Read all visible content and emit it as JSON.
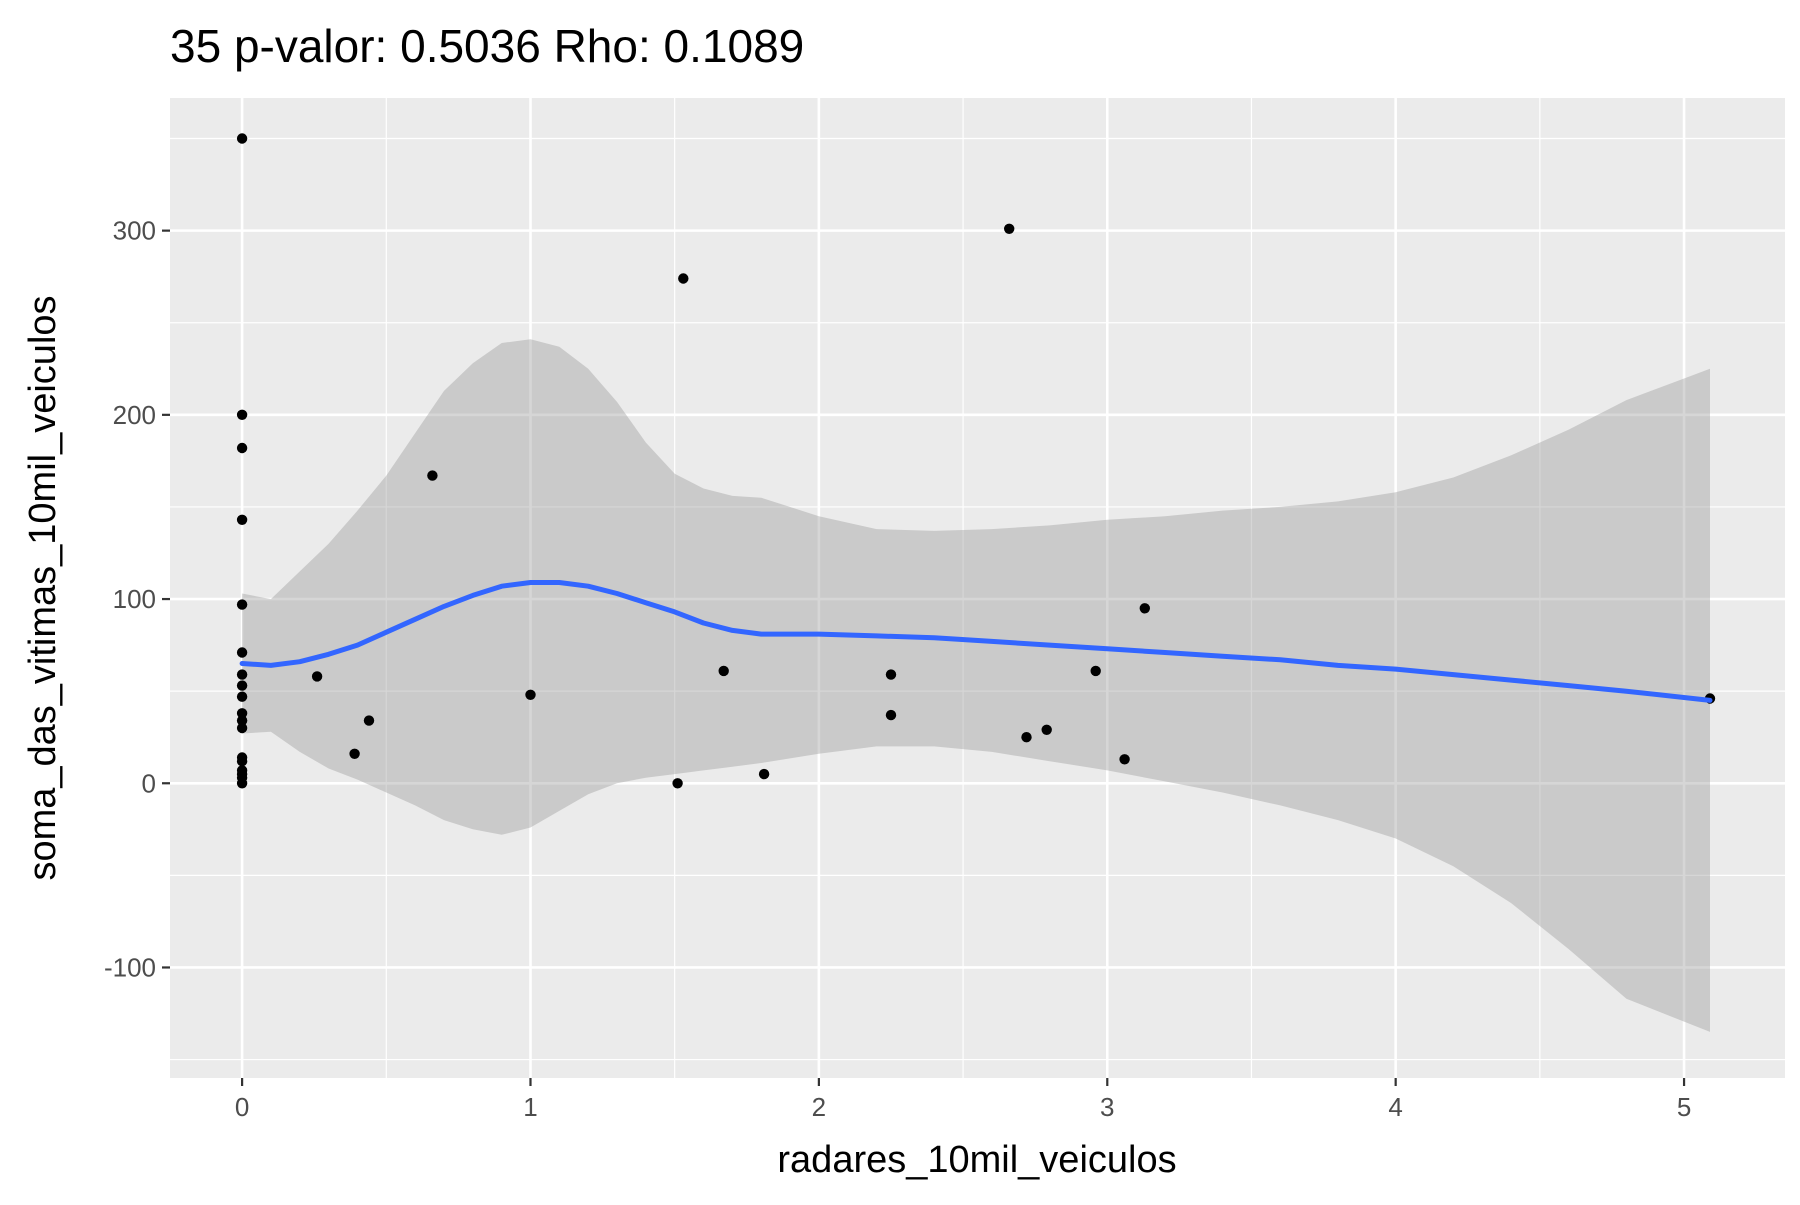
{
  "chart_data": {
    "type": "scatter",
    "title": "35 p-valor: 0.5036 Rho: 0.1089",
    "xlabel": "radares_10mil_veiculos",
    "ylabel": "soma_das_vitimas_10mil_veiculos",
    "xlim": [
      -0.25,
      5.35
    ],
    "ylim": [
      -160,
      372
    ],
    "x_ticks": [
      0,
      1,
      2,
      3,
      4,
      5
    ],
    "x_tick_labels": [
      "0",
      "1",
      "2",
      "3",
      "4",
      "5"
    ],
    "y_ticks": [
      -100,
      0,
      100,
      200,
      300
    ],
    "y_tick_labels": [
      "-100",
      "0",
      "100",
      "200",
      "300"
    ],
    "grid": true,
    "points": [
      {
        "x": 0.0,
        "y": 350
      },
      {
        "x": 0.0,
        "y": 200
      },
      {
        "x": 0.0,
        "y": 182
      },
      {
        "x": 0.0,
        "y": 143
      },
      {
        "x": 0.0,
        "y": 97
      },
      {
        "x": 0.0,
        "y": 71
      },
      {
        "x": 0.0,
        "y": 59
      },
      {
        "x": 0.0,
        "y": 53
      },
      {
        "x": 0.0,
        "y": 47
      },
      {
        "x": 0.0,
        "y": 38
      },
      {
        "x": 0.0,
        "y": 34
      },
      {
        "x": 0.0,
        "y": 30
      },
      {
        "x": 0.0,
        "y": 14
      },
      {
        "x": 0.0,
        "y": 12
      },
      {
        "x": 0.0,
        "y": 7
      },
      {
        "x": 0.0,
        "y": 5
      },
      {
        "x": 0.0,
        "y": 3
      },
      {
        "x": 0.0,
        "y": 0
      },
      {
        "x": 0.26,
        "y": 58
      },
      {
        "x": 0.39,
        "y": 16
      },
      {
        "x": 0.44,
        "y": 34
      },
      {
        "x": 0.66,
        "y": 167
      },
      {
        "x": 1.0,
        "y": 48
      },
      {
        "x": 1.51,
        "y": 0
      },
      {
        "x": 1.53,
        "y": 274
      },
      {
        "x": 1.67,
        "y": 61
      },
      {
        "x": 1.81,
        "y": 5
      },
      {
        "x": 2.25,
        "y": 59
      },
      {
        "x": 2.25,
        "y": 37
      },
      {
        "x": 2.66,
        "y": 301
      },
      {
        "x": 2.72,
        "y": 25
      },
      {
        "x": 2.79,
        "y": 29
      },
      {
        "x": 2.96,
        "y": 61
      },
      {
        "x": 3.06,
        "y": 13
      },
      {
        "x": 3.13,
        "y": 95
      },
      {
        "x": 5.09,
        "y": 46
      }
    ],
    "smooth": {
      "method": "loess",
      "color": "#3366FF",
      "x": [
        0.0,
        0.1,
        0.2,
        0.3,
        0.4,
        0.5,
        0.6,
        0.7,
        0.8,
        0.9,
        1.0,
        1.1,
        1.2,
        1.3,
        1.4,
        1.5,
        1.6,
        1.7,
        1.8,
        2.0,
        2.2,
        2.4,
        2.6,
        2.8,
        3.0,
        3.2,
        3.4,
        3.6,
        3.8,
        4.0,
        4.2,
        4.4,
        4.6,
        4.8,
        5.09
      ],
      "y": [
        65,
        64,
        66,
        70,
        75,
        82,
        89,
        96,
        102,
        107,
        109,
        109,
        107,
        103,
        98,
        93,
        87,
        83,
        81,
        81,
        80,
        79,
        77,
        75,
        73,
        71,
        69,
        67,
        64,
        62,
        59,
        56,
        53,
        50,
        45
      ],
      "upper": [
        103,
        100,
        115,
        130,
        148,
        167,
        190,
        213,
        228,
        239,
        241,
        237,
        225,
        207,
        185,
        168,
        160,
        156,
        155,
        145,
        138,
        137,
        138,
        140,
        143,
        145,
        148,
        150,
        153,
        158,
        166,
        178,
        192,
        208,
        225
      ],
      "lower": [
        27,
        28,
        17,
        8,
        2,
        -5,
        -12,
        -20,
        -25,
        -28,
        -24,
        -15,
        -6,
        0,
        3,
        5,
        7,
        9,
        11,
        16,
        20,
        20,
        17,
        12,
        7,
        1,
        -5,
        -12,
        -20,
        -30,
        -45,
        -65,
        -90,
        -117,
        -135
      ]
    },
    "colors": {
      "panel_background": "#EBEBEB",
      "grid_major": "#FFFFFF",
      "point": "#000000",
      "ribbon": "#999999",
      "line": "#3366FF"
    }
  }
}
